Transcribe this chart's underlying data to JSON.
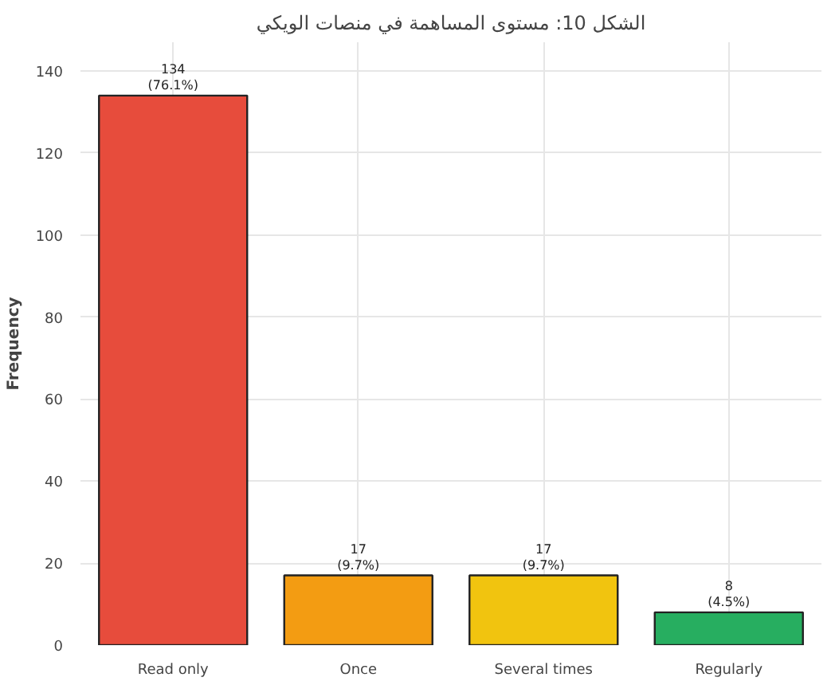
{
  "chart_data": {
    "type": "bar",
    "title": "الشكل 10: مستوى المساهمة في منصات الويكي",
    "ylabel": "Frequency",
    "categories": [
      "Read only",
      "Once",
      "Several times",
      "Regularly"
    ],
    "values": [
      134,
      17,
      17,
      8
    ],
    "colors": [
      "#e74c3c",
      "#f39c12",
      "#f1c40f",
      "#27ae60"
    ],
    "value_labels": [
      "134\n(76.1%)",
      "17\n(9.7%)",
      "17\n(9.7%)",
      "8\n(4.5%)"
    ],
    "ylim": [
      0,
      147
    ],
    "yticks": [
      0,
      20,
      40,
      60,
      80,
      100,
      120,
      140
    ],
    "grid": true
  }
}
